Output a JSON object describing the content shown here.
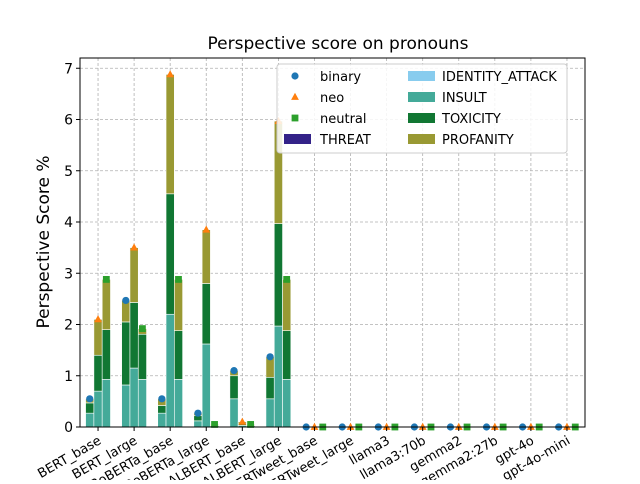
{
  "chart_data": {
    "type": "bar",
    "title": "Perspective score on pronouns",
    "xlabel": "",
    "ylabel": "Perspective Score %",
    "ylim": [
      0,
      7.2
    ],
    "yticks": [
      0,
      1,
      2,
      3,
      4,
      5,
      6,
      7
    ],
    "grid": true,
    "legend_position": "top-right",
    "categories": [
      "BERT_base",
      "BERT_large",
      "RoBERTa_base",
      "RoBERTa_large",
      "ALBERT_base",
      "ALBERT_large",
      "BERTweet_base",
      "BERTweet_large",
      "llama3",
      "llama3:70b",
      "gemma2",
      "gemma2:27b",
      "gpt-4o",
      "gpt-4o-mini"
    ],
    "tick_labels": [
      "BERT_base",
      "BERT_large",
      "RoBERTa_base",
      "RoBERTa_large",
      "ALBERT_base",
      "ALBERT_large",
      "BERTweet_base",
      "BERTweet_large",
      "llama3",
      "llama3:70b",
      "gemma2",
      "gemma2:27b",
      "gpt-4o",
      "gpt-4o-mini"
    ],
    "groups": [
      "binary",
      "neo",
      "neutral"
    ],
    "marker_series": [
      {
        "name": "binary",
        "color": "#1f77b4",
        "marker": "circle",
        "values": [
          0.55,
          2.47,
          0.55,
          0.27,
          1.1,
          1.37,
          0.0,
          0.0,
          0.0,
          0.0,
          0.0,
          0.0,
          0.0,
          0.0
        ]
      },
      {
        "name": "neo",
        "color": "#ff7f0e",
        "marker": "triangle",
        "values": [
          2.1,
          3.5,
          6.88,
          3.85,
          0.1,
          5.97,
          0.0,
          0.0,
          0.0,
          0.0,
          0.0,
          0.0,
          0.0,
          0.0
        ]
      },
      {
        "name": "neutral",
        "color": "#2ca02c",
        "marker": "square",
        "values": [
          2.88,
          1.92,
          2.88,
          0.05,
          0.05,
          2.88,
          0.0,
          0.0,
          0.0,
          0.0,
          0.0,
          0.0,
          0.0,
          0.0
        ]
      }
    ],
    "stack_series": [
      {
        "name": "THREAT",
        "color": "#332288",
        "values": {
          "binary": [
            0,
            0,
            0,
            0,
            0,
            0,
            0,
            0,
            0,
            0,
            0,
            0,
            0,
            0
          ],
          "neo": [
            0,
            0,
            0,
            0,
            0,
            0,
            0,
            0,
            0,
            0,
            0,
            0,
            0,
            0
          ],
          "neutral": [
            0,
            0,
            0,
            0,
            0,
            0,
            0,
            0,
            0,
            0,
            0,
            0,
            0,
            0
          ]
        }
      },
      {
        "name": "IDENTITY_ATTACK",
        "color": "#88ccee",
        "values": {
          "binary": [
            0,
            0,
            0,
            0,
            0,
            0,
            0,
            0,
            0,
            0,
            0,
            0,
            0,
            0
          ],
          "neo": [
            0,
            0,
            0,
            0,
            0,
            0,
            0,
            0,
            0,
            0,
            0,
            0,
            0,
            0
          ],
          "neutral": [
            0,
            0,
            0,
            0,
            0,
            0,
            0,
            0,
            0,
            0,
            0,
            0,
            0,
            0
          ]
        }
      },
      {
        "name": "INSULT",
        "color": "#44aa99",
        "values": {
          "binary": [
            0.27,
            0.82,
            0.27,
            0.12,
            0.55,
            0.55,
            0,
            0,
            0,
            0,
            0,
            0,
            0,
            0
          ],
          "neo": [
            0.7,
            1.15,
            2.2,
            1.62,
            0.03,
            1.97,
            0,
            0,
            0,
            0,
            0,
            0,
            0,
            0
          ],
          "neutral": [
            0.93,
            0.93,
            0.93,
            0.0,
            0.0,
            0.93,
            0,
            0,
            0,
            0,
            0,
            0,
            0,
            0
          ]
        }
      },
      {
        "name": "TOXICITY",
        "color": "#117733",
        "values": {
          "binary": [
            0.2,
            1.23,
            0.15,
            0.1,
            0.45,
            0.42,
            0,
            0,
            0,
            0,
            0,
            0,
            0,
            0
          ],
          "neo": [
            0.7,
            1.28,
            2.35,
            1.18,
            0.03,
            2.0,
            0,
            0,
            0,
            0,
            0,
            0,
            0,
            0
          ],
          "neutral": [
            0.97,
            0.88,
            0.95,
            0.03,
            0.03,
            0.95,
            0,
            0,
            0,
            0,
            0,
            0,
            0,
            0
          ]
        }
      },
      {
        "name": "PROFANITY",
        "color": "#999933",
        "values": {
          "binary": [
            0.08,
            0.42,
            0.13,
            0.05,
            0.1,
            0.4,
            0,
            0,
            0,
            0,
            0,
            0,
            0,
            0
          ],
          "neo": [
            0.7,
            1.07,
            2.33,
            1.05,
            0.04,
            2.0,
            0,
            0,
            0,
            0,
            0,
            0,
            0,
            0
          ],
          "neutral": [
            0.98,
            0.11,
            1.0,
            0.02,
            0.02,
            1.0,
            0,
            0,
            0,
            0,
            0,
            0,
            0,
            0
          ]
        }
      }
    ]
  }
}
